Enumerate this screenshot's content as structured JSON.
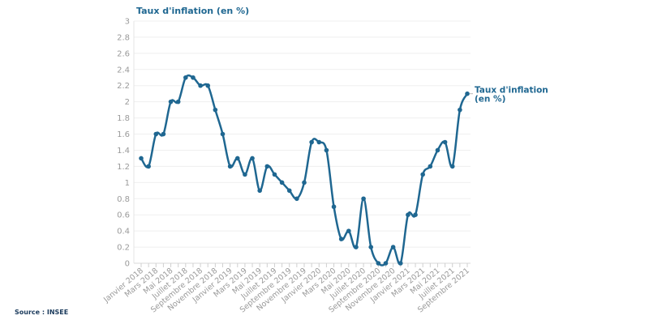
{
  "source": "Source : INSEE",
  "chart_data": {
    "type": "line",
    "title": "Taux d'inflation (en %)",
    "ylabel": "",
    "xlabel": "",
    "ylim": [
      0,
      3
    ],
    "yticks": [
      "0",
      "0.2",
      "0.4",
      "0.6",
      "0.8",
      "1",
      "1.2",
      "1.4",
      "1.6",
      "1.8",
      "2",
      "2.2",
      "2.4",
      "2.6",
      "2.8",
      "3"
    ],
    "grid": true,
    "color": "#1f6791",
    "xtick_labels": [
      "Janvier 2018",
      "Mars 2018",
      "Mai 2018",
      "Juillet 2018",
      "Septembre 2018",
      "Novembre 2018",
      "Janvier 2019",
      "Mars 2019",
      "Mai 2019",
      "Juillet 2019",
      "Septembre 2019",
      "Novembre 2019",
      "Janvier 2020",
      "Mars 2020",
      "Mai 2020",
      "Juillet 2020",
      "Septembre 2020",
      "Novembre 2020",
      "Janvier 2021",
      "Mars 2021",
      "Mai 2021",
      "Juillet 2021",
      "Septembre 2021"
    ],
    "series": [
      {
        "name": "Taux d'inflation (en %)",
        "label_lines": [
          "Taux d'inflation",
          "(en %)"
        ],
        "values": [
          1.3,
          1.2,
          1.6,
          1.6,
          2.0,
          2.0,
          2.3,
          2.3,
          2.2,
          2.2,
          1.9,
          1.6,
          1.2,
          1.3,
          1.1,
          1.3,
          0.9,
          1.2,
          1.1,
          1.0,
          0.9,
          0.8,
          1.0,
          1.5,
          1.5,
          1.4,
          0.7,
          0.3,
          0.4,
          0.2,
          0.8,
          0.2,
          0.0,
          0.0,
          0.2,
          0.0,
          0.6,
          0.6,
          1.1,
          1.2,
          1.4,
          1.5,
          1.2,
          1.9,
          2.1
        ]
      }
    ]
  }
}
